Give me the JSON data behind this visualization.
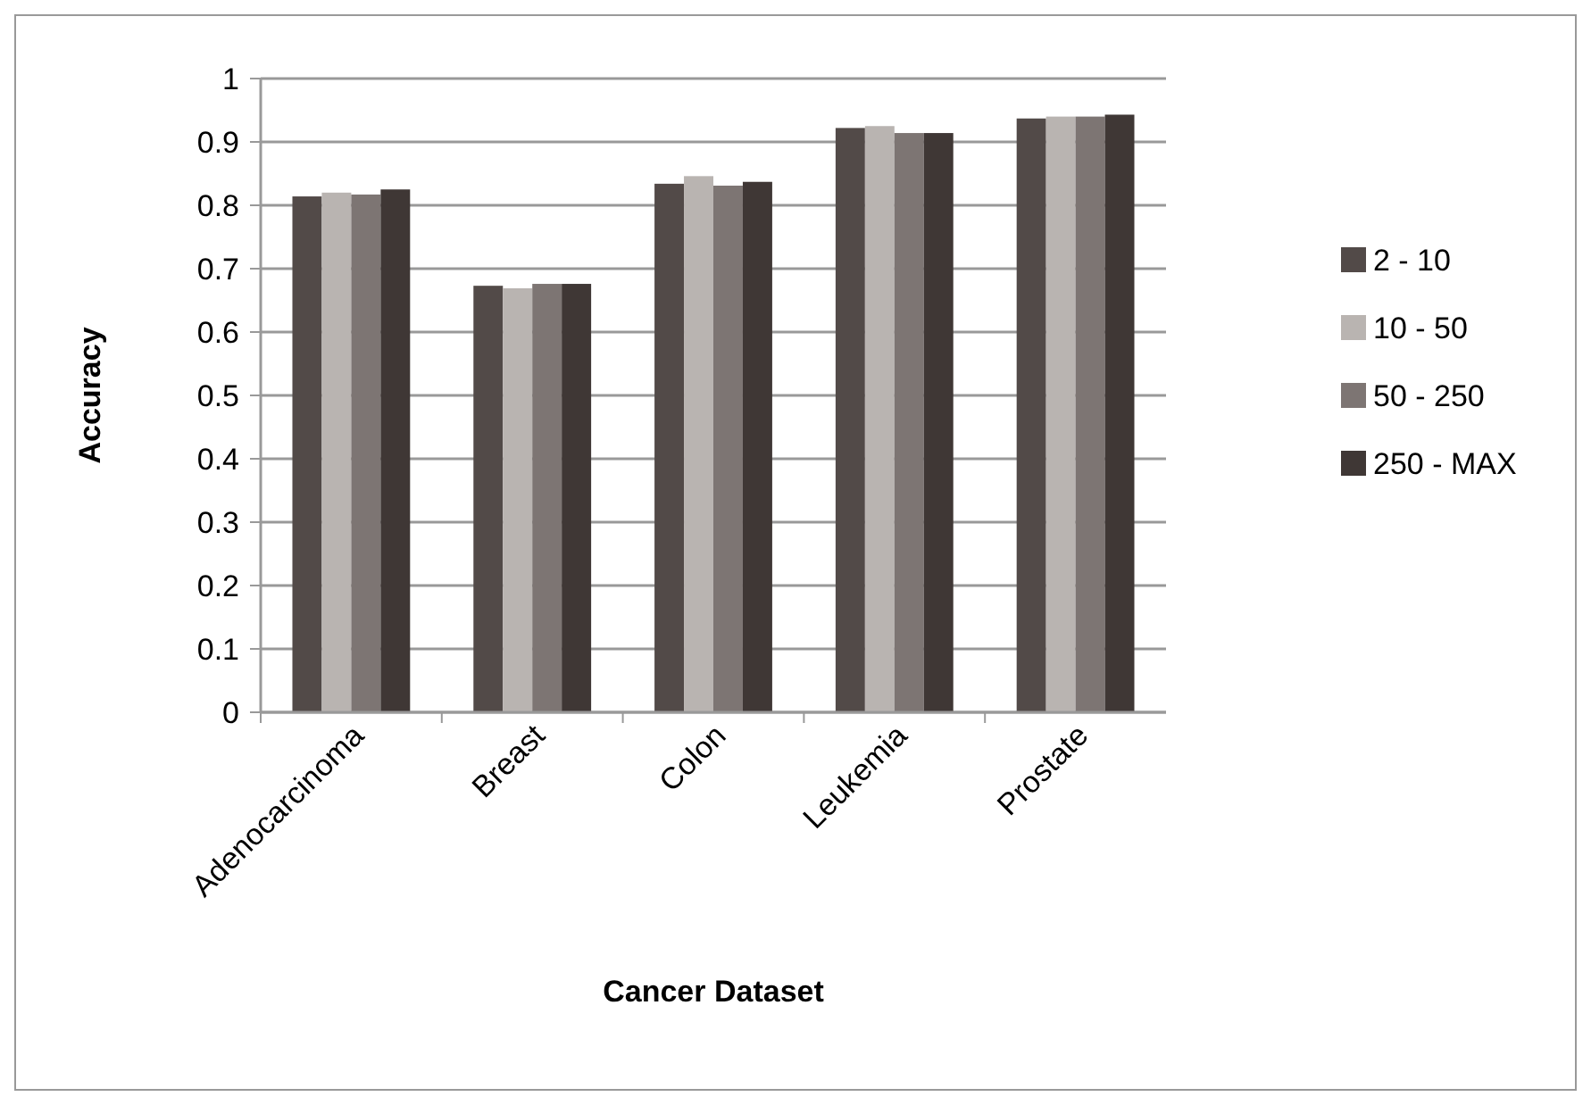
{
  "chart_data": {
    "type": "bar",
    "xlabel": "Cancer Dataset",
    "ylabel": "Accuracy",
    "categories": [
      "Adenocarcinoma",
      "Breast",
      "Colon",
      "Leukemia",
      "Prostate"
    ],
    "series": [
      {
        "name": "2 - 10",
        "color": "#524a48",
        "values": [
          0.814,
          0.673,
          0.834,
          0.922,
          0.937
        ]
      },
      {
        "name": "10 - 50",
        "color": "#b9b4b1",
        "values": [
          0.82,
          0.669,
          0.846,
          0.925,
          0.94
        ]
      },
      {
        "name": "50 - 250",
        "color": "#7d7573",
        "values": [
          0.817,
          0.676,
          0.831,
          0.914,
          0.94
        ]
      },
      {
        "name": "250 - MAX",
        "color": "#3f3735",
        "values": [
          0.825,
          0.676,
          0.837,
          0.914,
          0.943
        ]
      }
    ],
    "ylim": [
      0,
      1
    ],
    "yticks": [
      0,
      0.1,
      0.2,
      0.3,
      0.4,
      0.5,
      0.6,
      0.7,
      0.8,
      0.9,
      1
    ],
    "grid": "y",
    "legend": "right"
  }
}
